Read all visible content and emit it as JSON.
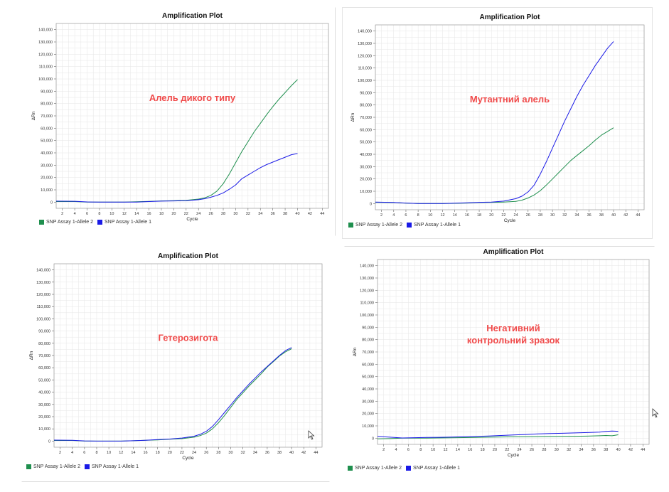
{
  "colors": {
    "allele2": "#1f8f4e",
    "allele1": "#1a1ae6",
    "annotation": "#f04a4a",
    "grid": "#e6e6e6"
  },
  "chart_data": [
    {
      "type": "line",
      "title": "Amplification Plot",
      "annotation": [
        "Алель дикого типу"
      ],
      "xlabel": "Cycle",
      "ylabel": "ΔRn",
      "xlim": [
        1,
        45
      ],
      "ylim": [
        -5000,
        145000
      ],
      "xticks": [
        2,
        4,
        6,
        8,
        10,
        12,
        14,
        16,
        18,
        20,
        22,
        24,
        26,
        28,
        30,
        32,
        34,
        36,
        38,
        40,
        42,
        44
      ],
      "yticks": [
        0,
        10000,
        20000,
        30000,
        40000,
        50000,
        60000,
        70000,
        80000,
        90000,
        100000,
        110000,
        120000,
        130000,
        140000
      ],
      "yticklabels": [
        "0",
        "10,000",
        "20,000",
        "30,000",
        "40,000",
        "50,000",
        "60,000",
        "70,000",
        "80,000",
        "90,000",
        "100,000",
        "110,000",
        "120,000",
        "130,000",
        "140,000"
      ],
      "series": [
        {
          "name": "SNP Assay 1-Allele 2",
          "color": "#1f8f4e",
          "x": [
            1,
            4,
            6,
            8,
            10,
            12,
            14,
            16,
            18,
            20,
            22,
            24,
            25,
            26,
            27,
            28,
            29,
            30,
            31,
            32,
            33,
            34,
            35,
            36,
            37,
            38,
            39,
            40
          ],
          "y": [
            500,
            500,
            0,
            0,
            0,
            0,
            300,
            600,
            1000,
            1200,
            1500,
            2500,
            3500,
            5500,
            9000,
            15000,
            23000,
            32000,
            41000,
            49000,
            57000,
            64000,
            71000,
            77500,
            83500,
            89000,
            94500,
            99500
          ]
        },
        {
          "name": "SNP Assay 1-Allele 1",
          "color": "#1a1ae6",
          "x": [
            1,
            4,
            6,
            8,
            10,
            12,
            14,
            16,
            18,
            20,
            22,
            24,
            25,
            26,
            27,
            28,
            29,
            30,
            31,
            32,
            33,
            34,
            35,
            36,
            37,
            38,
            39,
            40
          ],
          "y": [
            800,
            700,
            200,
            0,
            0,
            0,
            0,
            500,
            800,
            1000,
            1200,
            2000,
            2800,
            4000,
            5500,
            7500,
            10500,
            14000,
            19000,
            22000,
            25000,
            28000,
            30500,
            32500,
            34500,
            36500,
            38500,
            39500
          ]
        }
      ],
      "legend": "bottom-left"
    },
    {
      "type": "line",
      "title": "Amplification Plot",
      "annotation": [
        "Мутантний алель"
      ],
      "xlabel": "Cycle",
      "ylabel": "ΔRn",
      "xlim": [
        1,
        45
      ],
      "ylim": [
        -5000,
        145000
      ],
      "xticks": [
        2,
        4,
        6,
        8,
        10,
        12,
        14,
        16,
        18,
        20,
        22,
        24,
        26,
        28,
        30,
        32,
        34,
        36,
        38,
        40,
        42,
        44
      ],
      "yticks": [
        0,
        10000,
        20000,
        30000,
        40000,
        50000,
        60000,
        70000,
        80000,
        90000,
        100000,
        110000,
        120000,
        130000,
        140000
      ],
      "yticklabels": [
        "0",
        "10,000",
        "20,000",
        "30,000",
        "40,000",
        "50,000",
        "60,000",
        "70,000",
        "80,000",
        "90,000",
        "100,000",
        "110,000",
        "120,000",
        "130,000",
        "140,000"
      ],
      "series": [
        {
          "name": "SNP Assay 1-Allele 2",
          "color": "#1f8f4e",
          "x": [
            1,
            4,
            6,
            8,
            10,
            12,
            14,
            16,
            18,
            20,
            22,
            24,
            25,
            26,
            27,
            28,
            29,
            30,
            31,
            32,
            33,
            34,
            35,
            36,
            37,
            38,
            39,
            40
          ],
          "y": [
            1000,
            800,
            300,
            0,
            0,
            0,
            200,
            400,
            800,
            1000,
            1200,
            1800,
            2800,
            4500,
            7000,
            10500,
            15000,
            20000,
            25000,
            30000,
            35000,
            39000,
            43000,
            47000,
            51500,
            55500,
            58500,
            61500
          ]
        },
        {
          "name": "SNP Assay 1-Allele 1",
          "color": "#1a1ae6",
          "x": [
            1,
            4,
            6,
            8,
            10,
            12,
            14,
            16,
            18,
            20,
            22,
            24,
            25,
            26,
            27,
            28,
            29,
            30,
            31,
            32,
            33,
            34,
            35,
            36,
            37,
            38,
            39,
            40
          ],
          "y": [
            1200,
            900,
            400,
            0,
            0,
            0,
            300,
            600,
            1000,
            1200,
            2000,
            4000,
            6000,
            9500,
            15000,
            24000,
            34000,
            45000,
            56000,
            67000,
            77000,
            87000,
            96000,
            104000,
            112000,
            119000,
            126000,
            131500
          ]
        }
      ],
      "legend": "bottom-left"
    },
    {
      "type": "line",
      "title": "Amplification Plot",
      "annotation": [
        "Гетерозигота"
      ],
      "xlabel": "Cycle",
      "ylabel": "ΔRn",
      "xlim": [
        1,
        45
      ],
      "ylim": [
        -5000,
        145000
      ],
      "xticks": [
        2,
        4,
        6,
        8,
        10,
        12,
        14,
        16,
        18,
        20,
        22,
        24,
        26,
        28,
        30,
        32,
        34,
        36,
        38,
        40,
        42,
        44
      ],
      "yticks": [
        0,
        10000,
        20000,
        30000,
        40000,
        50000,
        60000,
        70000,
        80000,
        90000,
        100000,
        110000,
        120000,
        130000,
        140000
      ],
      "yticklabels": [
        "0",
        "10,000",
        "20,000",
        "30,000",
        "40,000",
        "50,000",
        "60,000",
        "70,000",
        "80,000",
        "90,000",
        "100,000",
        "110,000",
        "120,000",
        "130,000",
        "140,000"
      ],
      "series": [
        {
          "name": "SNP Assay 1-Allele 2",
          "color": "#1f8f4e",
          "x": [
            1,
            4,
            6,
            8,
            10,
            12,
            14,
            16,
            18,
            20,
            22,
            24,
            25,
            26,
            27,
            28,
            29,
            30,
            31,
            32,
            33,
            34,
            35,
            36,
            37,
            38,
            39,
            40
          ],
          "y": [
            500,
            500,
            0,
            0,
            0,
            0,
            300,
            700,
            1000,
            1500,
            2000,
            3200,
            4500,
            6500,
            10000,
            15000,
            21000,
            27500,
            34000,
            39500,
            45000,
            50000,
            55000,
            60500,
            65000,
            69500,
            73000,
            75500
          ]
        },
        {
          "name": "SNP Assay 1-Allele 1",
          "color": "#1a1ae6",
          "x": [
            1,
            4,
            6,
            8,
            10,
            12,
            14,
            16,
            18,
            20,
            22,
            24,
            25,
            26,
            27,
            28,
            29,
            30,
            31,
            32,
            33,
            34,
            35,
            36,
            37,
            38,
            39,
            40
          ],
          "y": [
            800,
            700,
            200,
            0,
            0,
            0,
            300,
            700,
            1200,
            1700,
            2500,
            4000,
            5500,
            8000,
            12000,
            17500,
            23500,
            29500,
            35500,
            41000,
            46500,
            51500,
            56500,
            61000,
            65500,
            70000,
            74000,
            76500
          ]
        }
      ],
      "legend": "bottom-left"
    },
    {
      "type": "line",
      "title": "Amplification Plot",
      "annotation": [
        "Негативний",
        "контрольний зразок"
      ],
      "xlabel": "Cycle",
      "ylabel": "ΔRn",
      "xlim": [
        1,
        45
      ],
      "ylim": [
        -5000,
        145000
      ],
      "xticks": [
        2,
        4,
        6,
        8,
        10,
        12,
        14,
        16,
        18,
        20,
        22,
        24,
        26,
        28,
        30,
        32,
        34,
        36,
        38,
        40,
        42,
        44
      ],
      "yticks": [
        0,
        10000,
        20000,
        30000,
        40000,
        50000,
        60000,
        70000,
        80000,
        90000,
        100000,
        110000,
        120000,
        130000,
        140000
      ],
      "yticklabels": [
        "0",
        "10,000",
        "20,000",
        "30,000",
        "40,000",
        "50,000",
        "60,000",
        "70,000",
        "80,000",
        "90,000",
        "100,000",
        "110,000",
        "120,000",
        "130,000",
        "140,000"
      ],
      "series": [
        {
          "name": "SNP Assay 1-Allele 2",
          "color": "#1f8f4e",
          "x": [
            1,
            3,
            5,
            7,
            9,
            11,
            13,
            15,
            17,
            19,
            21,
            23,
            25,
            27,
            29,
            31,
            33,
            35,
            37,
            38,
            39,
            40
          ],
          "y": [
            -500,
            -300,
            0,
            0,
            0,
            200,
            300,
            500,
            600,
            800,
            1000,
            1100,
            1200,
            1300,
            1400,
            1500,
            1600,
            1700,
            2000,
            2200,
            2000,
            2800
          ]
        },
        {
          "name": "SNP Assay 1-Allele 1",
          "color": "#1a1ae6",
          "x": [
            1,
            3,
            5,
            7,
            9,
            11,
            13,
            15,
            17,
            19,
            21,
            23,
            25,
            27,
            29,
            31,
            33,
            35,
            37,
            38,
            39,
            40
          ],
          "y": [
            1500,
            800,
            200,
            400,
            600,
            700,
            900,
            1200,
            1500,
            1800,
            2200,
            2600,
            3000,
            3500,
            3800,
            4000,
            4300,
            4600,
            5000,
            5500,
            5800,
            5600
          ]
        }
      ],
      "legend": "bottom-left"
    }
  ]
}
